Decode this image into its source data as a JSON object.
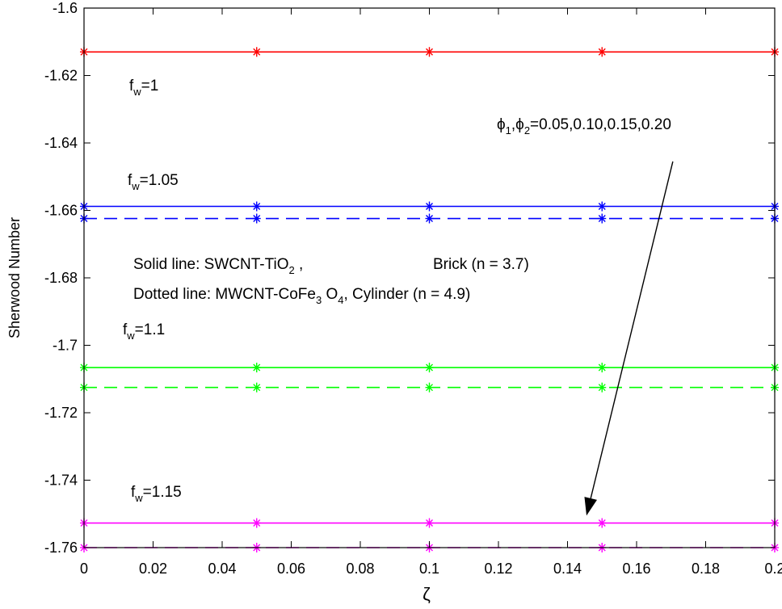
{
  "chart_data": {
    "type": "line",
    "title": "",
    "xlabel": "ζ",
    "ylabel": "Sherwood Number",
    "xlim": [
      0,
      0.2
    ],
    "ylim": [
      -1.76,
      -1.6
    ],
    "xticks": [
      "0",
      "0.02",
      "0.04",
      "0.06",
      "0.08",
      "0.1",
      "0.12",
      "0.14",
      "0.16",
      "0.18",
      "0.2"
    ],
    "yticks": [
      "-1.6",
      "-1.62",
      "-1.64",
      "-1.66",
      "-1.68",
      "-1.7",
      "-1.72",
      "-1.74",
      "-1.76"
    ],
    "grid": false,
    "legend": "none",
    "x": [
      0,
      0.05,
      0.1,
      0.15,
      0.2
    ],
    "series": [
      {
        "group": "fw=1",
        "style": "solid",
        "color": "#ff0000",
        "values": [
          -1.613,
          -1.613,
          -1.613,
          -1.613,
          -1.613
        ]
      },
      {
        "group": "fw=1.05",
        "style": "solid",
        "color": "#0000ff",
        "values": [
          -1.6588,
          -1.6588,
          -1.6588,
          -1.6588,
          -1.6588
        ]
      },
      {
        "group": "fw=1.05",
        "style": "dashed",
        "color": "#0000ff",
        "values": [
          -1.6624,
          -1.6624,
          -1.6624,
          -1.6624,
          -1.6624
        ]
      },
      {
        "group": "fw=1.1",
        "style": "solid",
        "color": "#00ff00",
        "values": [
          -1.7066,
          -1.7066,
          -1.7066,
          -1.7066,
          -1.7066
        ]
      },
      {
        "group": "fw=1.1",
        "style": "dashed",
        "color": "#00ff00",
        "values": [
          -1.7125,
          -1.7125,
          -1.7125,
          -1.7125,
          -1.7125
        ]
      },
      {
        "group": "fw=1.15",
        "style": "solid",
        "color": "#ff00ff",
        "values": [
          -1.7527,
          -1.7527,
          -1.7527,
          -1.7527,
          -1.7527
        ]
      },
      {
        "group": "fw=1.15",
        "style": "dashed",
        "color": "#ff00ff",
        "values": [
          -1.76,
          -1.76,
          -1.76,
          -1.76,
          -1.76
        ]
      }
    ],
    "annotations": {
      "fw1": {
        "base": "f",
        "sub": "w",
        "rest": "=1"
      },
      "fw105": {
        "base": "f",
        "sub": "w",
        "rest": "=1.05"
      },
      "fw11": {
        "base": "f",
        "sub": "w",
        "rest": "=1.1"
      },
      "fw115": {
        "base": "f",
        "sub": "w",
        "rest": "=1.15"
      },
      "phi": {
        "p1": "ϕ",
        "s1": "1",
        "p2": ",ϕ",
        "s2": "2",
        "rest": "=0.05,0.10,0.15,0.20"
      },
      "solid_line": {
        "a": "Solid line:   SWCNT-TiO",
        "s1": "2",
        "b": " ,",
        "c": "Brick (n = 3.7)"
      },
      "dotted_line": {
        "a": "Dotted line: MWCNT-CoFe",
        "s1": "3",
        "b": " O",
        "s2": "4",
        "c": ", Cylinder (n = 4.9)"
      }
    },
    "arrow": {
      "from": [
        0.1705,
        -1.6455
      ],
      "to": [
        0.1455,
        -1.7505
      ]
    }
  }
}
